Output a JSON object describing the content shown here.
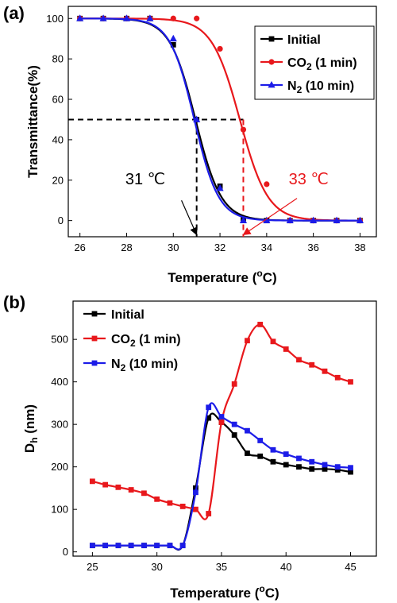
{
  "chart_data": [
    {
      "panel_label": "(a)",
      "type": "line",
      "xlabel": "Temperature (",
      "xlabel_unit_sup": "o",
      "xlabel_unit_tail": "C)",
      "ylabel": "Transmittance(%)",
      "xlim": [
        25.5,
        38.7
      ],
      "ylim": [
        -8,
        106
      ],
      "xticks": [
        26,
        28,
        30,
        32,
        34,
        36,
        38
      ],
      "yticks": [
        0,
        20,
        40,
        60,
        80,
        100
      ],
      "grid": false,
      "legend_position": "top-right",
      "series": [
        {
          "name": "Initial",
          "name_main": "Initial",
          "name_sub": "",
          "name_tail": "",
          "color": "#000000",
          "marker": "square",
          "x": [
            26,
            27,
            28,
            29,
            30,
            31,
            32,
            33,
            34,
            35,
            36,
            37,
            38
          ],
          "y": [
            100,
            100,
            100,
            100,
            87,
            50,
            17,
            1,
            0,
            0,
            0,
            0,
            0
          ],
          "fit": {
            "mid": 30.95,
            "width": 0.55
          }
        },
        {
          "name": "CO2 (1 min)",
          "name_main": "CO",
          "name_sub": "2",
          "name_tail": " (1 min)",
          "color": "#e8181c",
          "marker": "circle",
          "x": [
            26,
            27,
            28,
            29,
            30,
            31,
            32,
            33,
            34,
            35,
            36,
            37,
            38
          ],
          "y": [
            100,
            100,
            100,
            100,
            100,
            100,
            85,
            45,
            18,
            0,
            0,
            0,
            0
          ],
          "fit": {
            "mid": 32.85,
            "width": 0.6
          }
        },
        {
          "name": "N2 (10 min)",
          "name_main": "N",
          "name_sub": "2",
          "name_tail": " (10 min)",
          "color": "#1c1ce8",
          "marker": "triangle",
          "x": [
            26,
            27,
            28,
            29,
            30,
            31,
            32,
            33,
            34,
            35,
            36,
            37,
            38
          ],
          "y": [
            100,
            100,
            100,
            100,
            90,
            50,
            16,
            0,
            0,
            0,
            0,
            0,
            0
          ],
          "fit": {
            "mid": 30.9,
            "width": 0.52
          }
        }
      ],
      "reference_lines": [
        {
          "type": "horizontal",
          "y": 50,
          "x_from": 25.5,
          "x_to": 33,
          "color": "#000000",
          "dashed": true
        },
        {
          "type": "vertical",
          "x": 31,
          "y_from": 50,
          "y_to": -8,
          "color": "#000000",
          "dashed": true
        },
        {
          "type": "vertical",
          "x": 33,
          "y_from": 50,
          "y_to": -8,
          "color": "#e8181c",
          "dashed": true
        }
      ],
      "annotations": [
        {
          "text": "31 ℃",
          "color": "#000000",
          "label_x": 28.8,
          "label_y": 18,
          "arrow_from": [
            30.35,
            10
          ],
          "arrow_to": [
            31,
            -7
          ]
        },
        {
          "text": "33 ℃",
          "color": "#e8181c",
          "label_x": 35.8,
          "label_y": 18,
          "arrow_from": [
            35.3,
            11
          ],
          "arrow_to": [
            33,
            -7
          ]
        }
      ]
    },
    {
      "panel_label": "(b)",
      "type": "line",
      "xlabel": "Temperature (",
      "xlabel_unit_sup": "o",
      "xlabel_unit_tail": "C)",
      "ylabel_main": "D",
      "ylabel_sub": "h",
      "ylabel_tail": " (nm)",
      "xlim": [
        23.5,
        47
      ],
      "ylim": [
        -10,
        590
      ],
      "xticks": [
        25,
        30,
        35,
        40,
        45
      ],
      "yticks": [
        0,
        100,
        200,
        300,
        400,
        500
      ],
      "grid": false,
      "legend_position": "top-left",
      "series": [
        {
          "name": "Initial",
          "name_main": "Initial",
          "name_sub": "",
          "name_tail": "",
          "color": "#000000",
          "marker": "square",
          "x": [
            25,
            26,
            27,
            28,
            29,
            30,
            31,
            32,
            33,
            34,
            35,
            36,
            37,
            38,
            39,
            40,
            41,
            42,
            43,
            44,
            45
          ],
          "y": [
            15,
            15,
            15,
            15,
            15,
            15,
            15,
            15,
            150,
            315,
            305,
            275,
            232,
            225,
            212,
            205,
            200,
            195,
            195,
            193,
            188
          ]
        },
        {
          "name": "CO2 (1 min)",
          "name_main": "CO",
          "name_sub": "2",
          "name_tail": " (1 min)",
          "color": "#e8181c",
          "marker": "square",
          "x": [
            25,
            26,
            27,
            28,
            29,
            30,
            31,
            32,
            33,
            34,
            35,
            36,
            37,
            38,
            39,
            40,
            41,
            42,
            43,
            44,
            45
          ],
          "y": [
            166,
            158,
            152,
            146,
            138,
            124,
            115,
            107,
            100,
            90,
            305,
            395,
            497,
            535,
            495,
            477,
            452,
            440,
            425,
            410,
            400
          ]
        },
        {
          "name": "N2 (10 min)",
          "name_main": "N",
          "name_sub": "2",
          "name_tail": " (10 min)",
          "color": "#1c1ce8",
          "marker": "square",
          "x": [
            25,
            26,
            27,
            28,
            29,
            30,
            31,
            32,
            33,
            34,
            35,
            36,
            37,
            38,
            39,
            40,
            41,
            42,
            43,
            44,
            45
          ],
          "y": [
            15,
            15,
            15,
            15,
            15,
            15,
            15,
            15,
            140,
            340,
            318,
            300,
            285,
            262,
            240,
            230,
            220,
            212,
            205,
            200,
            198
          ]
        }
      ]
    }
  ]
}
